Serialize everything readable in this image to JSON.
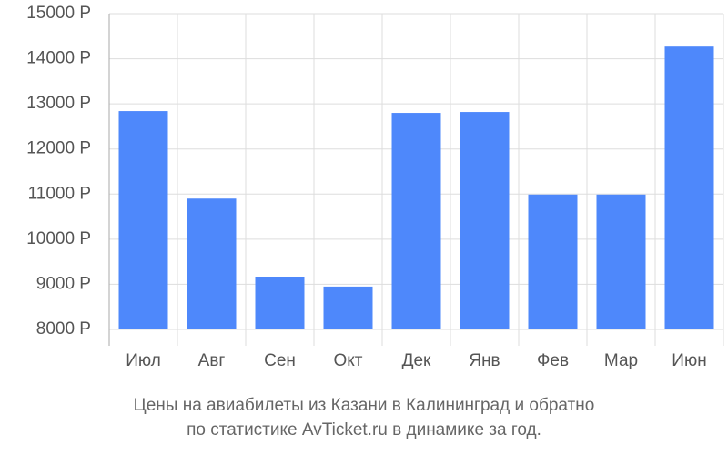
{
  "chart_data": {
    "type": "bar",
    "title": [
      "Цены на авиабилеты из Казани в Калининград и обратно",
      "по статистике AvTicket.ru в динамике за год."
    ],
    "categories": [
      "Июл",
      "Авг",
      "Сен",
      "Окт",
      "Дек",
      "Янв",
      "Фев",
      "Мар",
      "Июн"
    ],
    "values": [
      12840,
      10900,
      9170,
      8950,
      12800,
      12820,
      10990,
      10990,
      14270
    ],
    "color": "#4e88fb",
    "ylim": [
      8000,
      15000
    ],
    "yticks": [
      {
        "value": 8000,
        "label": "8000 Р"
      },
      {
        "value": 9000,
        "label": "9000 Р"
      },
      {
        "value": 10000,
        "label": "10000 Р"
      },
      {
        "value": 11000,
        "label": "11000 Р"
      },
      {
        "value": 12000,
        "label": "12000 Р"
      },
      {
        "value": 13000,
        "label": "13000 Р"
      },
      {
        "value": 14000,
        "label": "14000 Р"
      },
      {
        "value": 15000,
        "label": "15000 Р"
      }
    ],
    "grid": true
  }
}
